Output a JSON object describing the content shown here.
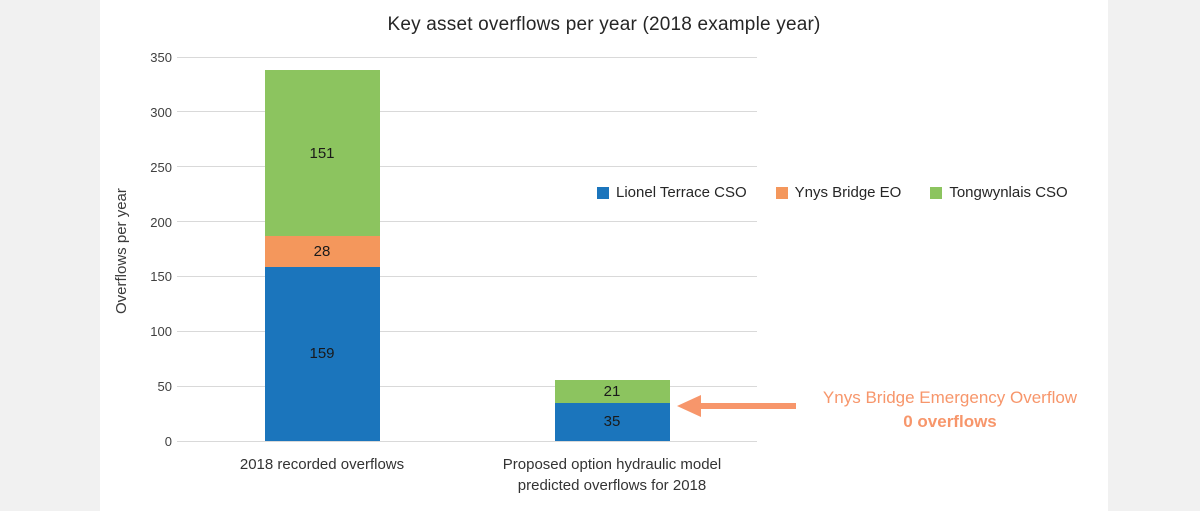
{
  "page": {
    "background": "#F1F1F1",
    "panel_background": "#FFFFFF"
  },
  "chart_data": {
    "type": "bar",
    "stacked": true,
    "title": "Key asset overflows per year (2018 example year)",
    "xlabel": "",
    "ylabel": "Overflows per year",
    "ylim": [
      0,
      350
    ],
    "yticks": [
      0,
      50,
      100,
      150,
      200,
      250,
      300,
      350
    ],
    "grid": true,
    "legend_position": "middle-right",
    "categories": [
      "2018 recorded overflows",
      "Proposed option hydraulic model predicted overflows for 2018"
    ],
    "series": [
      {
        "name": "Lionel Terrace CSO",
        "color": "#1B75BC",
        "values": [
          159,
          35
        ]
      },
      {
        "name": "Ynys Bridge EO",
        "color": "#F4975C",
        "values": [
          28,
          0
        ]
      },
      {
        "name": "Tongwynlais CSO",
        "color": "#8CC45F",
        "values": [
          151,
          21
        ]
      }
    ]
  },
  "annotation": {
    "line1": "Ynys Bridge Emergency Overflow",
    "line2": "0 overflows",
    "color": "#F7966B",
    "arrow_direction": "left"
  },
  "colors": {
    "gridline": "#D9D9D9",
    "axis_text": "#404040",
    "title_text": "#262626",
    "data_label_text": "#1A1A1A"
  }
}
